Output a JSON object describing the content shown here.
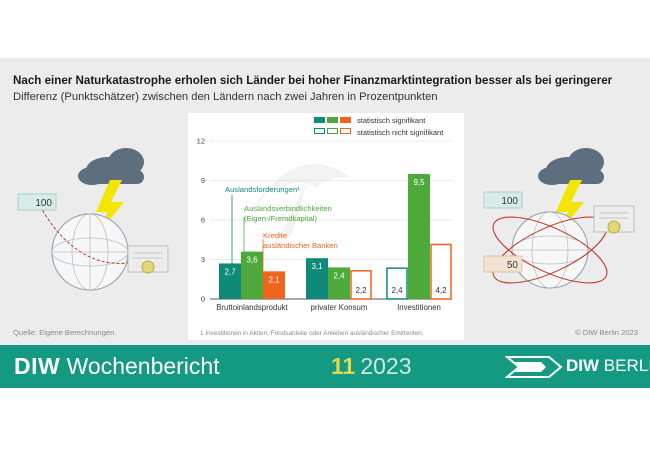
{
  "header": {
    "title": "Nach einer Naturkatastrophe erholen sich Länder bei hoher Finanzmarktintegration besser als bei geringerer",
    "subtitle": "Differenz (Punktschätzer) zwischen den Ländern nach zwei Jahren in Prozentpunkten"
  },
  "colors": {
    "dark_green": "#0f8a78",
    "light_green": "#4daa3a",
    "orange": "#f0641e",
    "teal_footer": "#149a82",
    "issue_yellow": "#e6d64a"
  },
  "legend": {
    "significant": "statistisch signifikant",
    "not_significant": "statistisch nicht signifikant"
  },
  "chart_data": {
    "type": "bar",
    "ylim": [
      0,
      12
    ],
    "yticks": [
      "0",
      "3",
      "6",
      "9",
      "12"
    ],
    "categories": [
      "Bruttoinlandsprodukt",
      "privater Konsum",
      "Investitionen"
    ],
    "series": [
      {
        "name": "Auslandsforderungen¹",
        "color": "#0f8a78",
        "values": [
          2.7,
          3.1,
          2.4
        ],
        "labels": [
          "2,7",
          "3,1",
          "2,4"
        ],
        "significant": [
          true,
          true,
          false
        ]
      },
      {
        "name": "Auslandsverbindlichkeiten (Eigen-/Fremdkapital)",
        "color": "#4daa3a",
        "values": [
          3.6,
          2.4,
          9.5
        ],
        "labels": [
          "3,6",
          "2,4",
          "9,5"
        ],
        "significant": [
          true,
          true,
          true
        ]
      },
      {
        "name": "Kredite ausländischer Banken",
        "color": "#f0641e",
        "values": [
          2.1,
          2.2,
          4.2
        ],
        "labels": [
          "2,1",
          "2,2",
          "4,2"
        ],
        "significant": [
          true,
          false,
          false
        ]
      }
    ],
    "annotations": {
      "forderungen": "Auslandsforderungen¹",
      "verbindlichkeiten_1": "Auslandsverbindlichkeiten",
      "verbindlichkeiten_2": "(Eigen-/Fremdkapital)",
      "kredite_1": "Kredite",
      "kredite_2": "ausländischer Banken"
    },
    "footnote": "1  Investitionen in Aktien, Fondsanteile oder Anleihen ausländischer Emittenten."
  },
  "illustration": {
    "note_left": "100",
    "note_right_1": "100",
    "note_right_2": "50"
  },
  "source": "Quelle: Eigene Berechnungen.",
  "copyright": "© DIW Berlin 2023",
  "footer": {
    "brand_bold": "DIW",
    "brand_rest": "Wochenbericht",
    "issue_number": "11",
    "issue_year": "2023",
    "logo_bold": "DIW",
    "logo_rest": "BERLIN"
  }
}
